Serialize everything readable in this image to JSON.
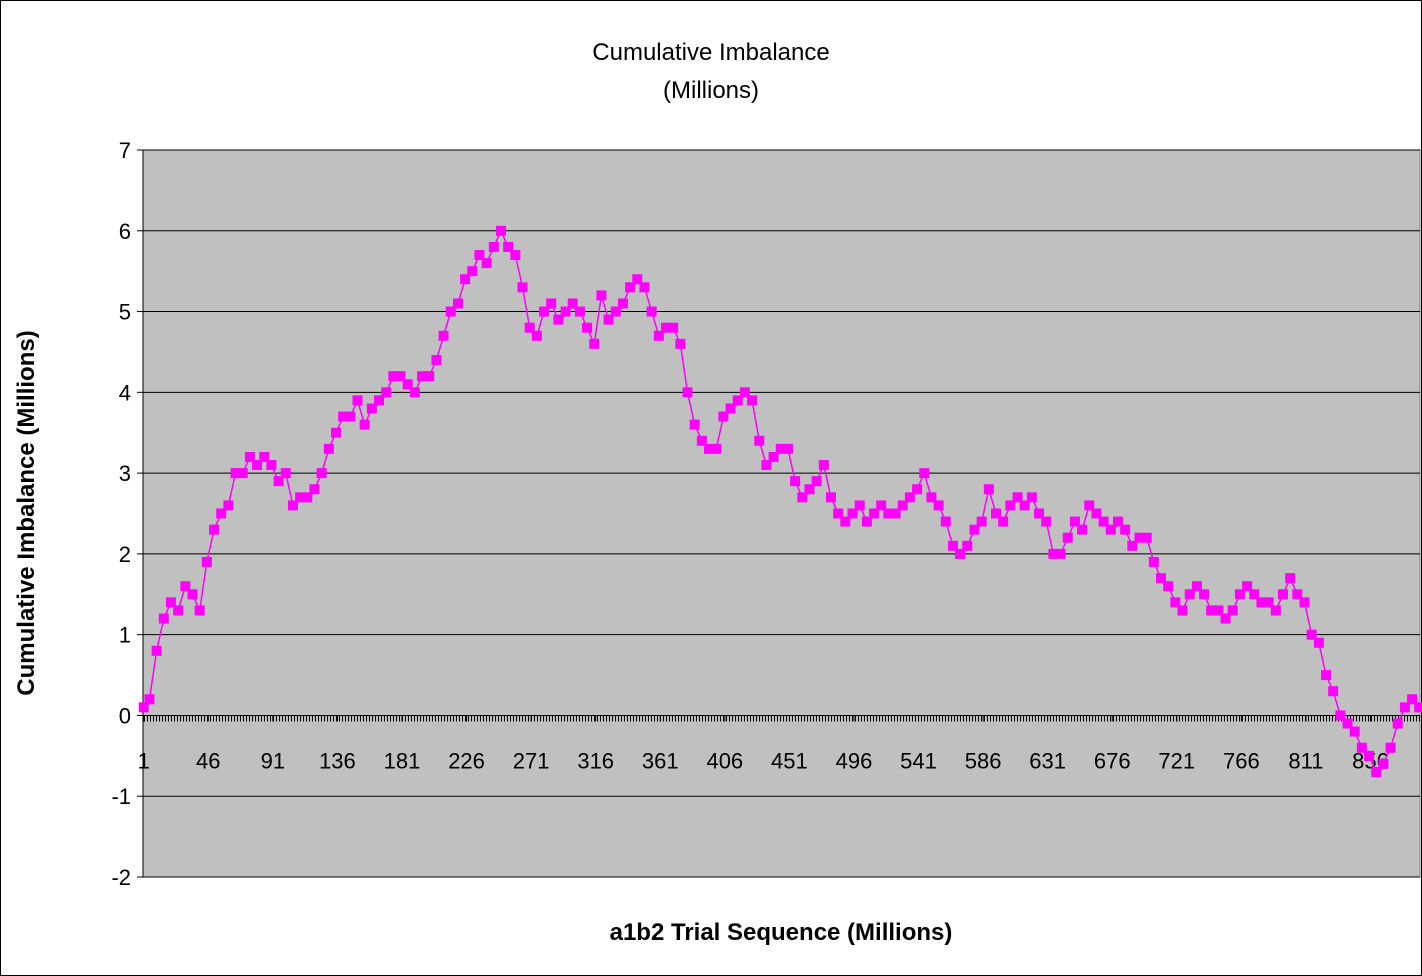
{
  "chart_data": {
    "type": "line",
    "title": "Cumulative Imbalance (Millions)",
    "y_label": "Cumulative Imbalance (Millions)",
    "x_label": "a1b2 Trial Sequence (Millions)",
    "xlim": [
      0.5,
      890.5
    ],
    "xticks": [
      1,
      46,
      91,
      136,
      181,
      226,
      271,
      316,
      361,
      406,
      451,
      496,
      541,
      586,
      631,
      676,
      721,
      766,
      811,
      856
    ],
    "ylim": [
      -2,
      7
    ],
    "yticks": [
      -2,
      -1,
      0,
      1,
      2,
      3,
      4,
      5,
      6,
      7
    ],
    "grid": true,
    "x": [
      1,
      5,
      10,
      15,
      20,
      25,
      30,
      35,
      40,
      45,
      50,
      55,
      60,
      65,
      70,
      75,
      80,
      85,
      90,
      95,
      100,
      105,
      110,
      115,
      120,
      125,
      130,
      135,
      140,
      145,
      150,
      155,
      160,
      165,
      170,
      175,
      180,
      185,
      190,
      195,
      200,
      205,
      210,
      215,
      220,
      225,
      230,
      235,
      240,
      245,
      250,
      255,
      260,
      265,
      270,
      275,
      280,
      285,
      290,
      295,
      300,
      305,
      310,
      315,
      320,
      325,
      330,
      335,
      340,
      345,
      350,
      355,
      360,
      365,
      370,
      375,
      380,
      385,
      390,
      395,
      400,
      405,
      410,
      415,
      420,
      425,
      430,
      435,
      440,
      445,
      450,
      455,
      460,
      465,
      470,
      475,
      480,
      485,
      490,
      495,
      500,
      505,
      510,
      515,
      520,
      525,
      530,
      535,
      540,
      545,
      550,
      555,
      560,
      565,
      570,
      575,
      580,
      585,
      590,
      595,
      600,
      605,
      610,
      615,
      620,
      625,
      630,
      635,
      640,
      645,
      650,
      655,
      660,
      665,
      670,
      675,
      680,
      685,
      690,
      695,
      700,
      705,
      710,
      715,
      720,
      725,
      730,
      735,
      740,
      745,
      750,
      755,
      760,
      765,
      770,
      775,
      780,
      785,
      790,
      795,
      800,
      805,
      810,
      815,
      820,
      825,
      830,
      835,
      840,
      845,
      850,
      855,
      860,
      865,
      870,
      875,
      880,
      885,
      890
    ],
    "series": [
      {
        "color": "#ff00ff",
        "values": [
          0.1,
          0.2,
          0.8,
          1.2,
          1.4,
          1.3,
          1.6,
          1.5,
          1.3,
          1.9,
          2.3,
          2.5,
          2.6,
          3.0,
          3.0,
          3.2,
          3.1,
          3.2,
          3.1,
          2.9,
          3.0,
          2.6,
          2.7,
          2.7,
          2.8,
          3.0,
          3.3,
          3.5,
          3.7,
          3.7,
          3.9,
          3.6,
          3.8,
          3.9,
          4.0,
          4.2,
          4.2,
          4.1,
          4.0,
          4.2,
          4.2,
          4.4,
          4.7,
          5.0,
          5.1,
          5.4,
          5.5,
          5.7,
          5.6,
          5.8,
          6.0,
          5.8,
          5.7,
          5.3,
          4.8,
          4.7,
          5.0,
          5.1,
          4.9,
          5.0,
          5.1,
          5.0,
          4.8,
          4.6,
          5.2,
          4.9,
          5.0,
          5.1,
          5.3,
          5.4,
          5.3,
          5.0,
          4.7,
          4.8,
          4.8,
          4.6,
          4.0,
          3.6,
          3.4,
          3.3,
          3.3,
          3.7,
          3.8,
          3.9,
          4.0,
          3.9,
          3.4,
          3.1,
          3.2,
          3.3,
          3.3,
          2.9,
          2.7,
          2.8,
          2.9,
          3.1,
          2.7,
          2.5,
          2.4,
          2.5,
          2.6,
          2.4,
          2.5,
          2.6,
          2.5,
          2.5,
          2.6,
          2.7,
          2.8,
          3.0,
          2.7,
          2.6,
          2.4,
          2.1,
          2.0,
          2.1,
          2.3,
          2.4,
          2.8,
          2.5,
          2.4,
          2.6,
          2.7,
          2.6,
          2.7,
          2.5,
          2.4,
          2.0,
          2.0,
          2.2,
          2.4,
          2.3,
          2.6,
          2.5,
          2.4,
          2.3,
          2.4,
          2.3,
          2.1,
          2.2,
          2.2,
          1.9,
          1.7,
          1.6,
          1.4,
          1.3,
          1.5,
          1.6,
          1.5,
          1.3,
          1.3,
          1.2,
          1.3,
          1.5,
          1.6,
          1.5,
          1.4,
          1.4,
          1.3,
          1.5,
          1.7,
          1.5,
          1.4,
          1.0,
          0.9,
          0.5,
          0.3,
          0.0,
          -0.1,
          -0.2,
          -0.4,
          -0.5,
          -0.7,
          -0.6,
          -0.4,
          -0.1,
          0.1,
          0.2,
          0.1
        ]
      }
    ]
  }
}
